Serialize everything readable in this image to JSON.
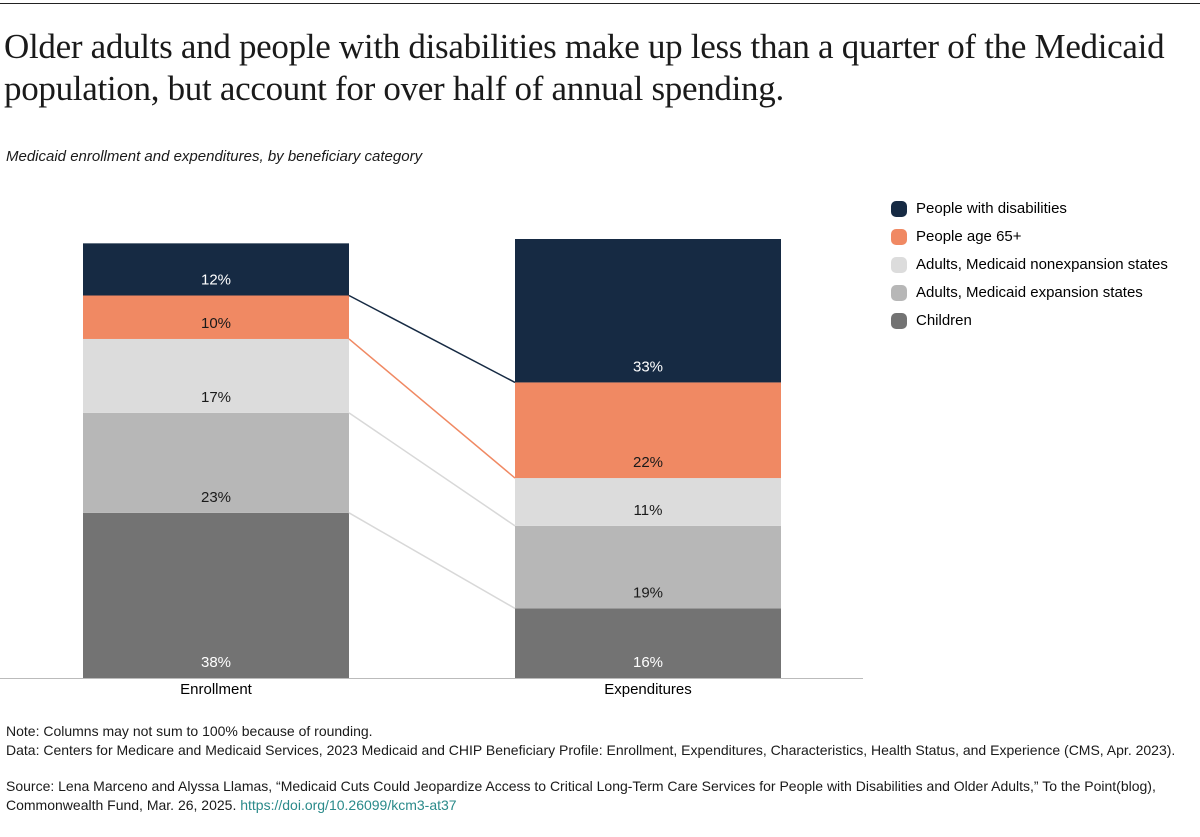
{
  "chart_data": {
    "type": "stacked_bar",
    "title": "Older adults and people with disabilities make up less than a quarter of the Medicaid population, but account for over half of annual spending.",
    "subtitle": "Medicaid enrollment and expenditures, by beneficiary category",
    "categories": [
      "Enrollment",
      "Expenditures"
    ],
    "series": [
      {
        "name": "People with disabilities",
        "color": "#162a43",
        "values": [
          12,
          33
        ],
        "value_labels": [
          "12%",
          "33%"
        ]
      },
      {
        "name": "People age 65+",
        "color": "#f08963",
        "values": [
          10,
          22
        ],
        "value_labels": [
          "10%",
          "22%"
        ]
      },
      {
        "name": "Adults, Medicaid nonexpansion states",
        "color": "#dcdcdc",
        "values": [
          17,
          11
        ],
        "value_labels": [
          "17%",
          "11%"
        ]
      },
      {
        "name": "Adults, Medicaid expansion states",
        "color": "#b7b7b7",
        "values": [
          23,
          19
        ],
        "value_labels": [
          "23%",
          "19%"
        ]
      },
      {
        "name": "Children",
        "color": "#737373",
        "values": [
          38,
          16
        ],
        "value_labels": [
          "38%",
          "16%"
        ]
      }
    ],
    "note": "Note: Columns may not sum to 100% because of rounding.",
    "data_source": "Data: Centers for Medicare and Medicaid Services, 2023 Medicaid and CHIP Beneficiary Profile: Enrollment, Expenditures, Characteristics, Health Status, and Experience (CMS, Apr. 2023).",
    "source": "Source: Lena Marceno and Alyssa Llamas, “Medicaid Cuts Could Jeopardize Access to Critical Long-Term Care Services for People with Disabilities and Older Adults,” To the Point(blog), Commonwealth Fund, Mar. 26, 2025.",
    "link": "https://doi.org/10.26099/kcm3-at37"
  }
}
